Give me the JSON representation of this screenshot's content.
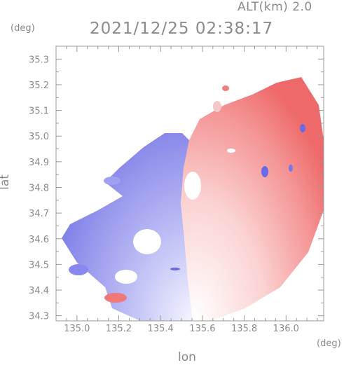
{
  "header": {
    "altitude": "ALT(km) 2.0",
    "timestamp": "2021/12/25 02:38:17"
  },
  "colors": {
    "axis": "#999999",
    "text": "#8a8a8a",
    "approach": "#8c8cf0",
    "recede": "#f06e6e",
    "background": "#ffffff"
  },
  "chart_data": {
    "type": "heatmap",
    "title": "",
    "xlabel": "lon",
    "ylabel": "lat",
    "x_unit": "(deg)",
    "y_unit": "(deg)",
    "xlim": [
      134.9,
      136.18
    ],
    "ylim": [
      34.28,
      35.35
    ],
    "x_ticks": [
      "135.0",
      "135.2",
      "135.4",
      "135.6",
      "135.8",
      "136.0"
    ],
    "y_ticks": [
      "34.3",
      "34.4",
      "34.5",
      "34.6",
      "34.7",
      "34.8",
      "34.9",
      "35.0",
      "35.1",
      "35.2",
      "35.3"
    ],
    "grid": false,
    "radar_center": [
      135.55,
      34.32
    ],
    "radar_range_deg": 0.85,
    "regions": [
      {
        "sign": "approaching",
        "lon_range": [
          134.9,
          135.55
        ],
        "lat_range": [
          34.3,
          35.0
        ]
      },
      {
        "sign": "receding",
        "lon_range": [
          135.55,
          136.18
        ],
        "lat_range": [
          34.3,
          35.25
        ]
      }
    ]
  }
}
